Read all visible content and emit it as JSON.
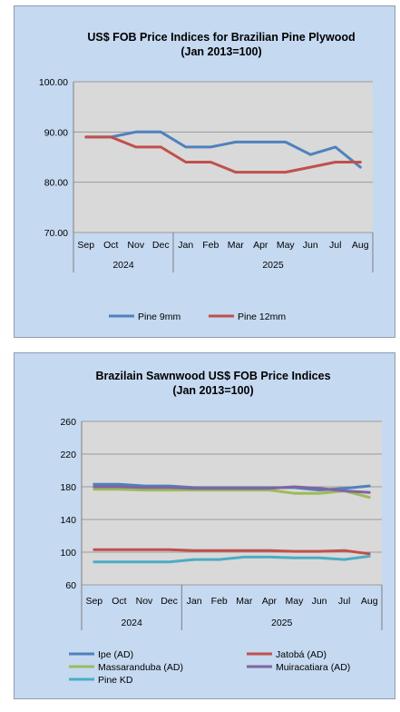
{
  "chart_data": [
    {
      "type": "line",
      "title": "US$ FOB Price Indices for Brazilian  Pine Plywood",
      "subtitle": "(Jan 2013=100)",
      "categories": [
        "Sep",
        "Oct",
        "Nov",
        "Dec",
        "Jan",
        "Feb",
        "Mar",
        "Apr",
        "May",
        "Jun",
        "Jul",
        "Aug"
      ],
      "year_groups": [
        {
          "label": "2024",
          "span": 4
        },
        {
          "label": "2025",
          "span": 8
        }
      ],
      "ylim": [
        70,
        100
      ],
      "yticks": [
        "70.00",
        "80.00",
        "90.00",
        "100.00"
      ],
      "grid": true,
      "legend": "bottom",
      "series": [
        {
          "name": "Pine 9mm",
          "color": "#4f81bd",
          "values": [
            89,
            89,
            90,
            90,
            87,
            87,
            88,
            88,
            88,
            85.5,
            87,
            83
          ]
        },
        {
          "name": "Pine 12mm",
          "color": "#c0504d",
          "values": [
            89,
            89,
            87,
            87,
            84,
            84,
            82,
            82,
            82,
            83,
            84,
            84
          ]
        }
      ]
    },
    {
      "type": "line",
      "title": "Brazilain Sawnwood US$ FOB Price Indices",
      "subtitle": "(Jan 2013=100)",
      "categories": [
        "Sep",
        "Oct",
        "Nov",
        "Dec",
        "Jan",
        "Feb",
        "Mar",
        "Apr",
        "May",
        "Jun",
        "Jul",
        "Aug"
      ],
      "year_groups": [
        {
          "label": "2024",
          "span": 4
        },
        {
          "label": "2025",
          "span": 8
        }
      ],
      "ylim": [
        60,
        260
      ],
      "yticks": [
        "60",
        "100",
        "140",
        "180",
        "220",
        "260"
      ],
      "grid": true,
      "legend": "bottom",
      "series": [
        {
          "name": "Ipe (AD)",
          "color": "#4f81bd",
          "values": [
            183,
            183,
            181,
            181,
            179,
            179,
            179,
            179,
            179,
            176,
            178,
            181
          ]
        },
        {
          "name": "Jatobá (AD)",
          "color": "#c0504d",
          "values": [
            103,
            103,
            103,
            103,
            102,
            102,
            102,
            102,
            101,
            101,
            102,
            98
          ]
        },
        {
          "name": "Massaranduba (AD)",
          "color": "#9bbb59",
          "values": [
            177,
            177,
            176,
            176,
            176,
            176,
            176,
            176,
            172,
            172,
            175,
            167
          ]
        },
        {
          "name": "Muiracatiara (AD)",
          "color": "#8064a2",
          "values": [
            180,
            180,
            179,
            179,
            178,
            178,
            178,
            178,
            180,
            178,
            175,
            173
          ]
        },
        {
          "name": "Pine KD",
          "color": "#4bacc6",
          "values": [
            88,
            88,
            88,
            88,
            91,
            91,
            94,
            94,
            93,
            93,
            91,
            95
          ]
        }
      ]
    }
  ]
}
